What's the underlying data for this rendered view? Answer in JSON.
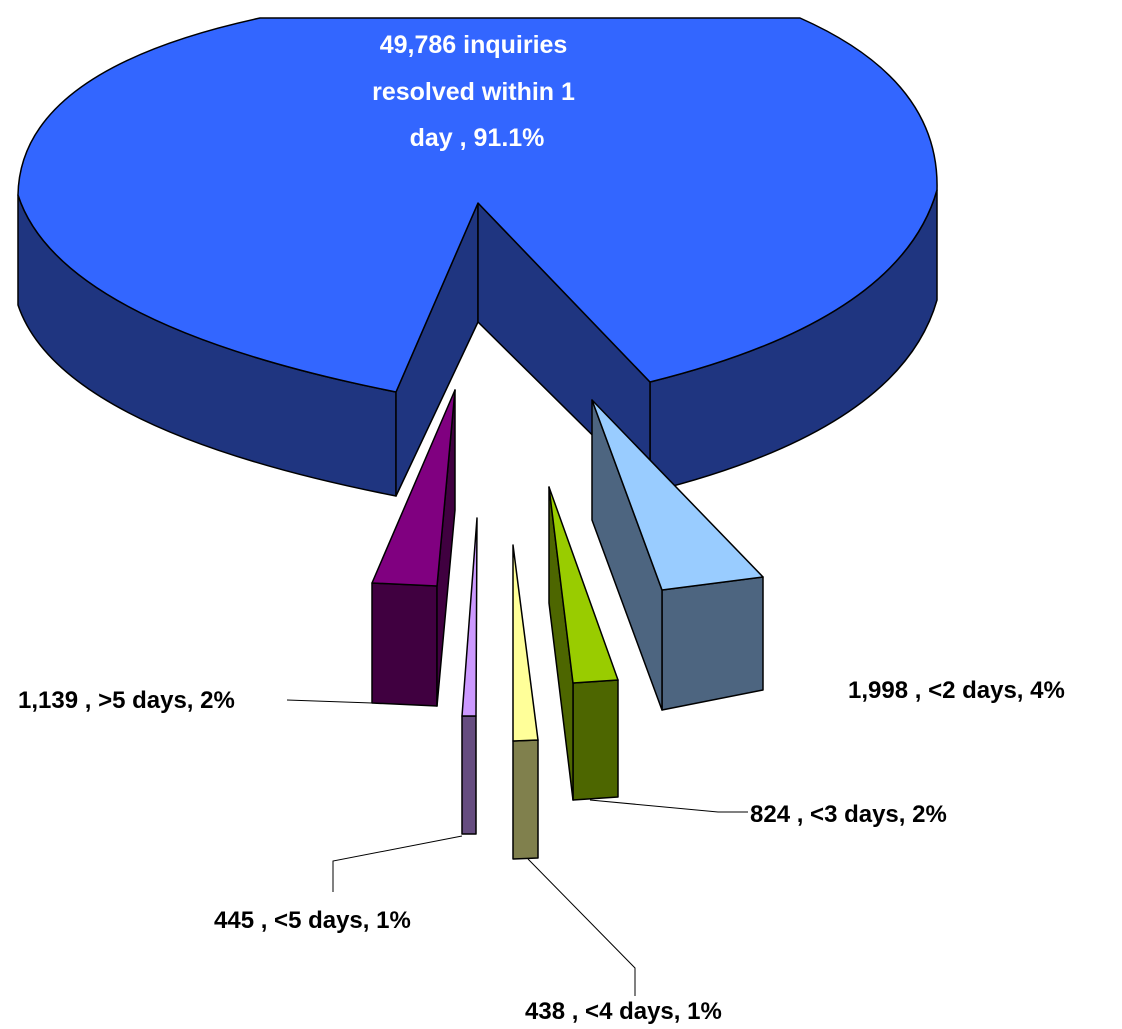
{
  "chart_data": {
    "type": "pie",
    "style": "3d-exploded",
    "slices": [
      {
        "id": "d1",
        "count": 49786,
        "label": "49,786 inquiries resolved within 1 day , 91.1%",
        "label_lines": [
          "49,786 inquiries",
          "resolved within 1",
          "day , 91.1%"
        ],
        "percent": 91.1,
        "top_color": "#3366ff",
        "side_color": "#1f3580"
      },
      {
        "id": "d2",
        "count": 1998,
        "label": "1,998 , <2 days, 4%",
        "percent": 4,
        "top_color": "#99ccff",
        "side_color": "#4d6580"
      },
      {
        "id": "d3",
        "count": 824,
        "label": "824 , <3 days, 2%",
        "percent": 2,
        "top_color": "#99cc00",
        "side_color": "#4d6600"
      },
      {
        "id": "d4",
        "count": 438,
        "label": "438 , <4 days, 1%",
        "percent": 1,
        "top_color": "#ffff99",
        "side_color": "#80804d"
      },
      {
        "id": "d5",
        "count": 445,
        "label": "445 , <5 days, 1%",
        "percent": 1,
        "top_color": "#cc99ff",
        "side_color": "#664d80"
      },
      {
        "id": "d6",
        "count": 1139,
        "label": "1,139 , >5 days, 2%",
        "percent": 2,
        "top_color": "#800080",
        "side_color": "#400040"
      }
    ]
  }
}
